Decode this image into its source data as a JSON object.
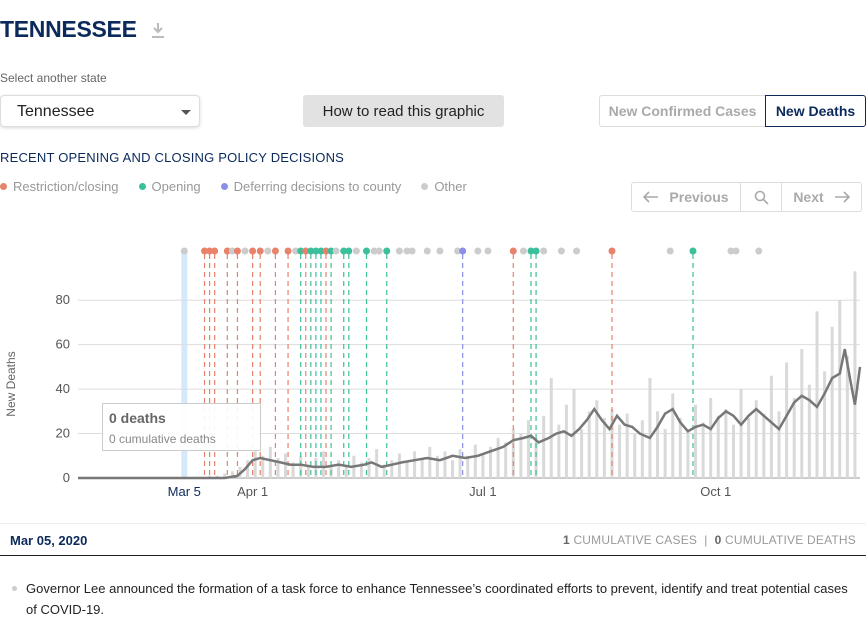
{
  "header": {
    "state_title": "TENNESSEE",
    "download_icon": "download-icon"
  },
  "selector": {
    "label": "Select another state",
    "value": "Tennessee"
  },
  "buttons": {
    "how_to_read": "How to read this graphic"
  },
  "toggle": {
    "cases_label": "New Confirmed Cases",
    "deaths_label": "New Deaths",
    "active": "New Deaths"
  },
  "policy": {
    "title": "RECENT OPENING AND CLOSING POLICY DECISIONS",
    "legend": [
      {
        "label": "Restriction/closing",
        "color": "#e8826a"
      },
      {
        "label": "Opening",
        "color": "#3cbf9b"
      },
      {
        "label": "Deferring decisions to county",
        "color": "#8a8fe8"
      },
      {
        "label": "Other",
        "color": "#cccccc"
      }
    ]
  },
  "nav": {
    "previous": "Previous",
    "next": "Next",
    "search_icon": "search-icon"
  },
  "tooltip": {
    "deaths": "0 deaths",
    "cumulative": "0 cumulative deaths"
  },
  "selected": {
    "date": "Mar 05, 2020",
    "cases_count": "1",
    "cases_label": "CUMULATIVE CASES",
    "deaths_count": "0",
    "deaths_label": "CUMULATIVE DEATHS",
    "separator": "|"
  },
  "news": {
    "text": "Governor Lee announced the formation of a task force to enhance Tennessee’s coordinated efforts to prevent, identify and treat potential cases of COVID-19."
  },
  "chart_data": {
    "type": "bar",
    "ylabel": "New Deaths",
    "ylim": [
      0,
      90
    ],
    "yticks": [
      0,
      20,
      40,
      60,
      80
    ],
    "xticks": [
      {
        "label": "Mar 5",
        "day": 4,
        "selected": true
      },
      {
        "label": "Apr 1",
        "day": 31
      },
      {
        "label": "Jul 1",
        "day": 122
      },
      {
        "label": "Oct 1",
        "day": 214
      }
    ],
    "day_range": [
      -38,
      271
    ],
    "selected_day": 4,
    "policy_events": [
      {
        "day": 4,
        "type": "other"
      },
      {
        "day": 12,
        "type": "restriction"
      },
      {
        "day": 14,
        "type": "restriction"
      },
      {
        "day": 16,
        "type": "restriction"
      },
      {
        "day": 21,
        "type": "restriction"
      },
      {
        "day": 23,
        "type": "other"
      },
      {
        "day": 25,
        "type": "restriction"
      },
      {
        "day": 28,
        "type": "other"
      },
      {
        "day": 31,
        "type": "restriction"
      },
      {
        "day": 34,
        "type": "restriction"
      },
      {
        "day": 37,
        "type": "other"
      },
      {
        "day": 40,
        "type": "restriction"
      },
      {
        "day": 45,
        "type": "restriction"
      },
      {
        "day": 48,
        "type": "other"
      },
      {
        "day": 50,
        "type": "opening"
      },
      {
        "day": 52,
        "type": "restriction"
      },
      {
        "day": 54,
        "type": "opening"
      },
      {
        "day": 56,
        "type": "opening"
      },
      {
        "day": 58,
        "type": "opening"
      },
      {
        "day": 60,
        "type": "restriction"
      },
      {
        "day": 62,
        "type": "opening"
      },
      {
        "day": 64,
        "type": "other"
      },
      {
        "day": 67,
        "type": "opening"
      },
      {
        "day": 69,
        "type": "opening"
      },
      {
        "day": 72,
        "type": "other"
      },
      {
        "day": 76,
        "type": "opening"
      },
      {
        "day": 79,
        "type": "other"
      },
      {
        "day": 81,
        "type": "other"
      },
      {
        "day": 84,
        "type": "opening"
      },
      {
        "day": 89,
        "type": "other"
      },
      {
        "day": 92,
        "type": "other"
      },
      {
        "day": 94,
        "type": "other"
      },
      {
        "day": 100,
        "type": "other"
      },
      {
        "day": 105,
        "type": "other"
      },
      {
        "day": 112,
        "type": "other"
      },
      {
        "day": 114,
        "type": "county"
      },
      {
        "day": 120,
        "type": "other"
      },
      {
        "day": 124,
        "type": "other"
      },
      {
        "day": 134,
        "type": "restriction"
      },
      {
        "day": 138,
        "type": "other"
      },
      {
        "day": 141,
        "type": "opening"
      },
      {
        "day": 143,
        "type": "opening"
      },
      {
        "day": 146,
        "type": "other"
      },
      {
        "day": 153,
        "type": "other"
      },
      {
        "day": 159,
        "type": "other"
      },
      {
        "day": 173,
        "type": "restriction"
      },
      {
        "day": 196,
        "type": "other"
      },
      {
        "day": 205,
        "type": "opening"
      },
      {
        "day": 220,
        "type": "other"
      },
      {
        "day": 222,
        "type": "other"
      },
      {
        "day": 231,
        "type": "other"
      }
    ],
    "daily_values": [
      {
        "day": 11,
        "value": 0
      },
      {
        "day": 14,
        "value": 1
      },
      {
        "day": 17,
        "value": 1
      },
      {
        "day": 20,
        "value": 2
      },
      {
        "day": 23,
        "value": 3
      },
      {
        "day": 26,
        "value": 5
      },
      {
        "day": 29,
        "value": 8
      },
      {
        "day": 32,
        "value": 12
      },
      {
        "day": 35,
        "value": 10
      },
      {
        "day": 38,
        "value": 14
      },
      {
        "day": 41,
        "value": 9
      },
      {
        "day": 44,
        "value": 11
      },
      {
        "day": 47,
        "value": 7
      },
      {
        "day": 50,
        "value": 10
      },
      {
        "day": 53,
        "value": 6
      },
      {
        "day": 56,
        "value": 9
      },
      {
        "day": 59,
        "value": 12
      },
      {
        "day": 62,
        "value": 5
      },
      {
        "day": 65,
        "value": 8
      },
      {
        "day": 68,
        "value": 6
      },
      {
        "day": 71,
        "value": 10
      },
      {
        "day": 74,
        "value": 7
      },
      {
        "day": 77,
        "value": 9
      },
      {
        "day": 80,
        "value": 13
      },
      {
        "day": 83,
        "value": 6
      },
      {
        "day": 86,
        "value": 8
      },
      {
        "day": 89,
        "value": 11
      },
      {
        "day": 92,
        "value": 7
      },
      {
        "day": 95,
        "value": 12
      },
      {
        "day": 98,
        "value": 9
      },
      {
        "day": 101,
        "value": 14
      },
      {
        "day": 104,
        "value": 10
      },
      {
        "day": 107,
        "value": 12
      },
      {
        "day": 110,
        "value": 8
      },
      {
        "day": 113,
        "value": 13
      },
      {
        "day": 116,
        "value": 10
      },
      {
        "day": 119,
        "value": 15
      },
      {
        "day": 122,
        "value": 11
      },
      {
        "day": 125,
        "value": 14
      },
      {
        "day": 128,
        "value": 18
      },
      {
        "day": 131,
        "value": 16
      },
      {
        "day": 134,
        "value": 22
      },
      {
        "day": 137,
        "value": 20
      },
      {
        "day": 140,
        "value": 26
      },
      {
        "day": 143,
        "value": 18
      },
      {
        "day": 146,
        "value": 28
      },
      {
        "day": 149,
        "value": 45
      },
      {
        "day": 152,
        "value": 24
      },
      {
        "day": 155,
        "value": 33
      },
      {
        "day": 158,
        "value": 40
      },
      {
        "day": 161,
        "value": 22
      },
      {
        "day": 164,
        "value": 30
      },
      {
        "day": 167,
        "value": 35
      },
      {
        "day": 170,
        "value": 27
      },
      {
        "day": 173,
        "value": 31
      },
      {
        "day": 176,
        "value": 24
      },
      {
        "day": 179,
        "value": 29
      },
      {
        "day": 182,
        "value": 20
      },
      {
        "day": 185,
        "value": 26
      },
      {
        "day": 188,
        "value": 45
      },
      {
        "day": 191,
        "value": 30
      },
      {
        "day": 194,
        "value": 22
      },
      {
        "day": 197,
        "value": 38
      },
      {
        "day": 200,
        "value": 27
      },
      {
        "day": 203,
        "value": 21
      },
      {
        "day": 206,
        "value": 33
      },
      {
        "day": 209,
        "value": 25
      },
      {
        "day": 212,
        "value": 36
      },
      {
        "day": 215,
        "value": 28
      },
      {
        "day": 218,
        "value": 31
      },
      {
        "day": 221,
        "value": 24
      },
      {
        "day": 224,
        "value": 40
      },
      {
        "day": 227,
        "value": 27
      },
      {
        "day": 230,
        "value": 35
      },
      {
        "day": 233,
        "value": 29
      },
      {
        "day": 236,
        "value": 46
      },
      {
        "day": 239,
        "value": 30
      },
      {
        "day": 242,
        "value": 52
      },
      {
        "day": 245,
        "value": 36
      },
      {
        "day": 248,
        "value": 58
      },
      {
        "day": 251,
        "value": 42
      },
      {
        "day": 254,
        "value": 75
      },
      {
        "day": 257,
        "value": 48
      },
      {
        "day": 260,
        "value": 68
      },
      {
        "day": 263,
        "value": 80
      },
      {
        "day": 266,
        "value": 55
      },
      {
        "day": 269,
        "value": 93
      }
    ],
    "average": [
      [
        -38,
        0
      ],
      [
        20,
        0
      ],
      [
        25,
        1
      ],
      [
        28,
        4
      ],
      [
        31,
        8
      ],
      [
        34,
        9
      ],
      [
        38,
        8
      ],
      [
        42,
        7
      ],
      [
        46,
        6
      ],
      [
        50,
        6
      ],
      [
        55,
        5
      ],
      [
        60,
        5
      ],
      [
        65,
        6
      ],
      [
        70,
        5
      ],
      [
        75,
        6
      ],
      [
        78,
        7
      ],
      [
        82,
        5
      ],
      [
        86,
        6
      ],
      [
        90,
        7
      ],
      [
        95,
        8
      ],
      [
        100,
        9
      ],
      [
        105,
        8
      ],
      [
        110,
        10
      ],
      [
        115,
        9
      ],
      [
        120,
        10
      ],
      [
        125,
        12
      ],
      [
        130,
        14
      ],
      [
        134,
        17
      ],
      [
        138,
        18
      ],
      [
        141,
        19
      ],
      [
        144,
        16
      ],
      [
        148,
        18
      ],
      [
        151,
        20
      ],
      [
        154,
        21
      ],
      [
        157,
        19
      ],
      [
        160,
        22
      ],
      [
        163,
        26
      ],
      [
        166,
        31
      ],
      [
        169,
        26
      ],
      [
        172,
        22
      ],
      [
        175,
        28
      ],
      [
        178,
        24
      ],
      [
        181,
        23
      ],
      [
        184,
        20
      ],
      [
        188,
        18
      ],
      [
        191,
        23
      ],
      [
        194,
        29
      ],
      [
        197,
        31
      ],
      [
        200,
        25
      ],
      [
        203,
        21
      ],
      [
        206,
        23
      ],
      [
        209,
        24
      ],
      [
        212,
        22
      ],
      [
        215,
        27
      ],
      [
        218,
        30
      ],
      [
        221,
        28
      ],
      [
        224,
        24
      ],
      [
        227,
        28
      ],
      [
        230,
        31
      ],
      [
        233,
        28
      ],
      [
        236,
        25
      ],
      [
        239,
        22
      ],
      [
        242,
        28
      ],
      [
        245,
        34
      ],
      [
        248,
        37
      ],
      [
        251,
        35
      ],
      [
        254,
        32
      ],
      [
        257,
        38
      ],
      [
        260,
        45
      ],
      [
        263,
        47
      ],
      [
        265,
        58
      ],
      [
        267,
        45
      ],
      [
        269,
        33
      ],
      [
        271,
        50
      ]
    ]
  }
}
